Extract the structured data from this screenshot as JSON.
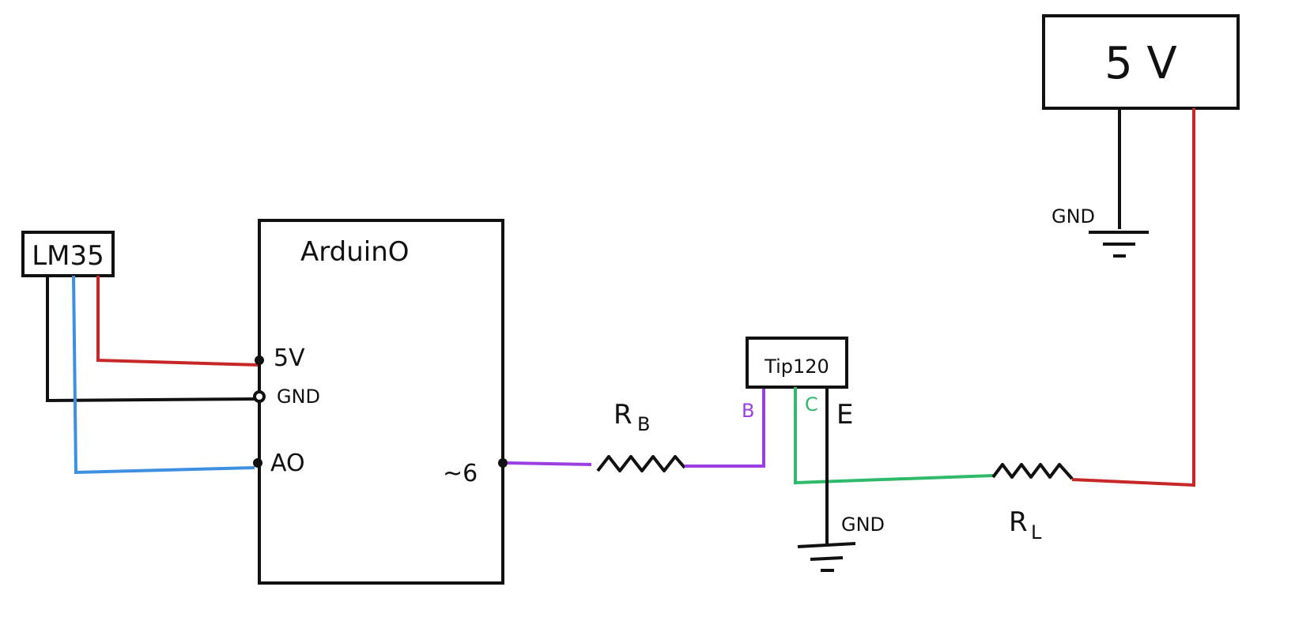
{
  "components": {
    "power_supply": {
      "label": "5 V",
      "gnd_label": "GND"
    },
    "sensor": {
      "label": "LM35"
    },
    "arduino": {
      "label": "ArduinO",
      "pins": {
        "5v": "5V",
        "gnd": "GND",
        "a0": "AO",
        "d6": "~6"
      }
    },
    "transistor": {
      "label": "Tip120",
      "pins": {
        "base": "B",
        "collector": "C",
        "emitter": "E"
      },
      "gnd_label": "GND"
    },
    "base_resistor": {
      "label": "R",
      "subscript": "B"
    },
    "load_resistor": {
      "label": "R",
      "subscript": "L"
    }
  },
  "colors": {
    "power": "#c62828",
    "ground": "#111111",
    "signal": "#3d8fe0",
    "base": "#9b3fe0",
    "collector": "#2fba6b"
  }
}
